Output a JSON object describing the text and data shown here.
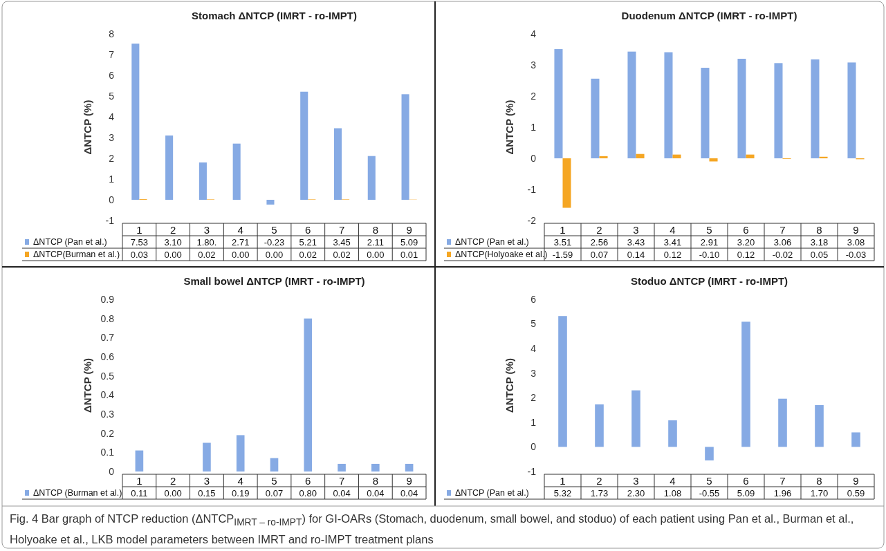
{
  "chart_data": [
    {
      "type": "bar",
      "title": "Stomach ΔNTCP (IMRT - ro-IMPT)",
      "ylabel": "ΔNTCP (%)",
      "categories": [
        "1",
        "2",
        "3",
        "4",
        "5",
        "6",
        "7",
        "8",
        "9"
      ],
      "series": [
        {
          "name": "ΔNTCP (Pan et al.)",
          "color": "#86aae4",
          "values": [
            7.53,
            3.1,
            1.8,
            2.71,
            -0.23,
            5.21,
            3.45,
            2.11,
            5.09
          ],
          "value_labels": [
            "7.53",
            "3.10",
            "1.80.",
            "2.71",
            "-0.23",
            "5.21",
            "3.45",
            "2.11",
            "5.09"
          ]
        },
        {
          "name": "ΔNTCP(Burman et al.)",
          "color": "#f5a623",
          "values": [
            0.03,
            0,
            0.02,
            0,
            0,
            0.02,
            0.02,
            0,
            0.01
          ],
          "value_labels": [
            "0.03",
            "0.00",
            "0.02",
            "0.00",
            "0.00",
            "0.02",
            "0.02",
            "0.00",
            "0.01"
          ]
        }
      ],
      "ylim": [
        -1,
        8
      ],
      "yticks": [
        -1,
        0,
        1,
        2,
        3,
        4,
        5,
        6,
        7,
        8
      ],
      "legend": "bottom",
      "annotations": [
        "Fig. 4 Bar graph of NTCP reduction (ΔNTCP$_{IMRT – ro-IMPT}$) for GI-OARs (Stomach, duodenum, small bowel, and stoduo) of each patient using Pan et al., Burman et al., Holyoake et al., LKB model parameters between IMRT and ro-IMPT treatment plans"
      ]
    },
    {
      "type": "bar",
      "title": "Duodenum ΔNTCP (IMRT - ro-IMPT)",
      "ylabel": "ΔNTCP (%)",
      "categories": [
        "1",
        "2",
        "3",
        "4",
        "5",
        "6",
        "7",
        "8",
        "9"
      ],
      "series": [
        {
          "name": "ΔNTCP (Pan et al.)",
          "color": "#86aae4",
          "values": [
            3.51,
            2.56,
            3.43,
            3.41,
            2.91,
            3.2,
            3.06,
            3.18,
            3.08
          ],
          "value_labels": [
            "3.51",
            "2.56",
            "3.43",
            "3.41",
            "2.91",
            "3.20",
            "3.06",
            "3.18",
            "3.08"
          ]
        },
        {
          "name": "ΔNTCP(Holyoake et al.)",
          "color": "#f5a623",
          "values": [
            -1.59,
            0.07,
            0.14,
            0.12,
            -0.1,
            0.12,
            -0.02,
            0.05,
            -0.03
          ],
          "value_labels": [
            "-1.59",
            "0.07",
            "0.14",
            "0.12",
            "-0.10",
            "0.12",
            "-0.02",
            "0.05",
            "-0.03"
          ]
        }
      ],
      "ylim": [
        -2,
        4
      ],
      "yticks": [
        -2,
        -1,
        0,
        1,
        2,
        3,
        4
      ],
      "legend": "bottom"
    },
    {
      "type": "bar",
      "title": "Small bowel ΔNTCP (IMRT - ro-IMPT)",
      "ylabel": "ΔNTCP (%)",
      "categories": [
        "1",
        "2",
        "3",
        "4",
        "5",
        "6",
        "7",
        "8",
        "9"
      ],
      "series": [
        {
          "name": "ΔNTCP (Burman et al.)",
          "color": "#86aae4",
          "values": [
            0.11,
            0,
            0.15,
            0.19,
            0.07,
            0.8,
            0.04,
            0.04,
            0.04
          ],
          "value_labels": [
            "0.11",
            "0.00",
            "0.15",
            "0.19",
            "0.07",
            "0.80",
            "0.04",
            "0.04",
            "0.04"
          ]
        }
      ],
      "ylim": [
        0,
        0.9
      ],
      "yticks": [
        0,
        0.1,
        0.2,
        0.3,
        0.4,
        0.5,
        0.6,
        0.7,
        0.8,
        0.9
      ],
      "legend": "bottom"
    },
    {
      "type": "bar",
      "title": "Stoduo ΔNTCP (IMRT - ro-IMPT)",
      "ylabel": "ΔNTCP (%)",
      "categories": [
        "1",
        "2",
        "3",
        "4",
        "5",
        "6",
        "7",
        "8",
        "9"
      ],
      "series": [
        {
          "name": "ΔNTCP (Pan et al.)",
          "color": "#86aae4",
          "values": [
            5.32,
            1.73,
            2.3,
            1.08,
            -0.55,
            5.09,
            1.96,
            1.7,
            0.59
          ],
          "value_labels": [
            "5.32",
            "1.73",
            "2.30",
            "1.08",
            "-0.55",
            "5.09",
            "1.96",
            "1.70",
            "0.59"
          ]
        }
      ],
      "ylim": [
        -1,
        6
      ],
      "yticks": [
        -1,
        0,
        1,
        2,
        3,
        4,
        5,
        6
      ],
      "legend": "bottom"
    }
  ]
}
